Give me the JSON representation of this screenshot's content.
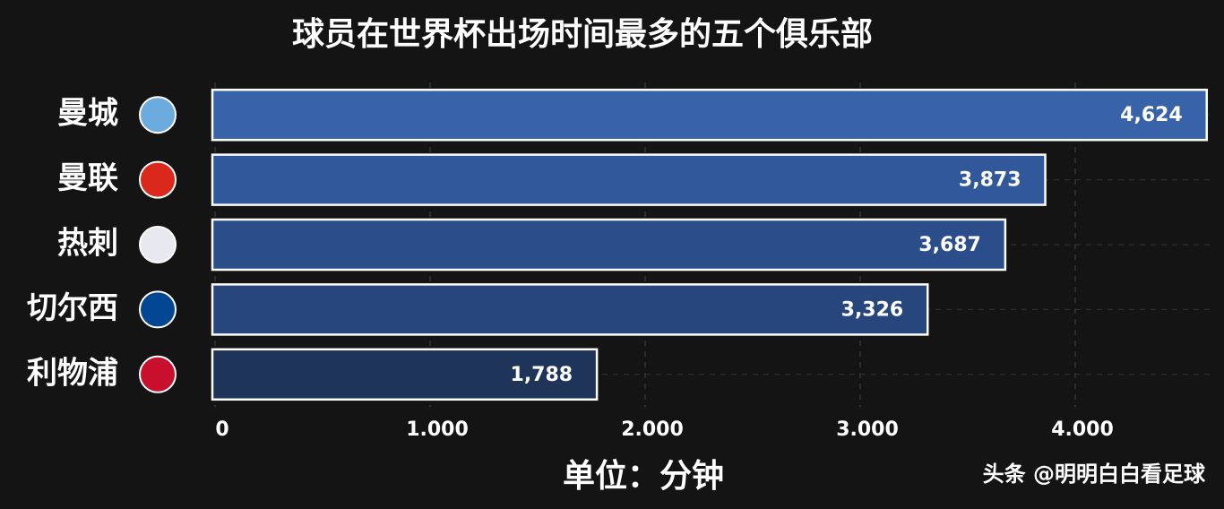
{
  "chart_data": {
    "type": "hbar",
    "title": "球员在世界杯出场时间最多的五个俱乐部",
    "categories": [
      "曼城",
      "曼联",
      "热刺",
      "切尔西",
      "利物浦"
    ],
    "values": [
      4624,
      3873,
      3687,
      3326,
      1788
    ],
    "value_labels": [
      "4,624",
      "3,873",
      "3,687",
      "3,326",
      "1,788"
    ],
    "colors": [
      "#3963a9",
      "#31589a",
      "#2b4e8b",
      "#27477c",
      "#1f3459"
    ],
    "xlim": [
      0,
      4650
    ],
    "xticks": [
      0,
      {
        "value": 1000,
        "label": "1.000"
      },
      {
        "value": 2000,
        "label": "2.000"
      },
      {
        "value": 3000,
        "label": "3.000"
      },
      {
        "value": 4000,
        "label": "4.000"
      }
    ],
    "grid": true,
    "xlabel": "单位：分钟",
    "watermark": "头条 @明明白白看足球"
  }
}
